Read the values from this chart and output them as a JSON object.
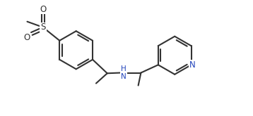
{
  "bg_color": "#ffffff",
  "line_color": "#333333",
  "nitrogen_color": "#2244bb",
  "line_width": 1.5,
  "figsize": [
    3.58,
    1.65
  ],
  "dpi": 100,
  "xlim": [
    0,
    9.5
  ],
  "ylim": [
    0,
    4.3
  ]
}
